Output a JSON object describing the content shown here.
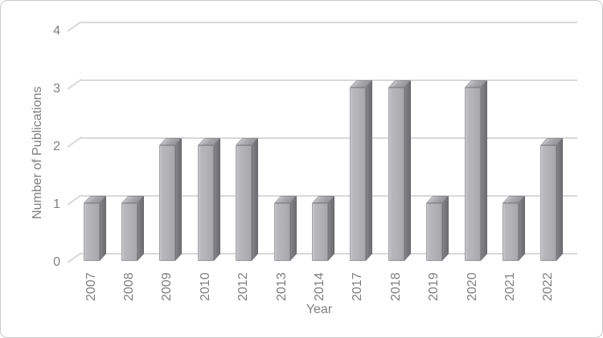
{
  "chart_data": {
    "type": "bar",
    "style": "3d-gray-columns",
    "title": "",
    "xlabel": "Year",
    "ylabel": "Number of Publications",
    "categories": [
      "2007",
      "2008",
      "2009",
      "2010",
      "2012",
      "2013",
      "2014",
      "2017",
      "2018",
      "2019",
      "2020",
      "2021",
      "2022"
    ],
    "values": [
      1,
      1,
      2,
      2,
      2,
      1,
      1,
      3,
      3,
      1,
      3,
      1,
      2
    ],
    "yticks": [
      0,
      1,
      2,
      3,
      4
    ],
    "ylim": [
      0,
      4
    ],
    "grid": true,
    "legend": false,
    "colors": {
      "bar_front": "#b2b2b6",
      "bar_side": "#77777b",
      "bar_top": "#a9a9ad",
      "gridline": "#d9d9d9",
      "text": "#7f7f7f",
      "border": "#c9c9c9",
      "background": "#ffffff"
    }
  }
}
